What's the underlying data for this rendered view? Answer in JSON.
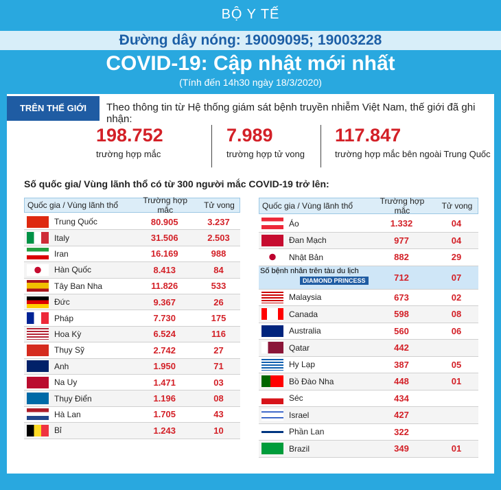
{
  "header": {
    "brand": "BỘ Y TẾ",
    "hotline": "Đường dây nóng: 19009095; 19003228",
    "title": "COVID-19: Cập nhật mới nhất",
    "subtitle": "(Tính đến 14h30 ngày 18/3/2020)"
  },
  "world": {
    "tag": "TRÊN THẾ GIỚI",
    "intro": "Theo thông tin từ Hệ thống giám sát bệnh truyền nhiễm Việt Nam, thế giới đã ghi nhận:",
    "stats": [
      {
        "value": "198.752",
        "label": "trường hợp mắc"
      },
      {
        "value": "7.989",
        "label": "trường hợp tử vong"
      },
      {
        "value": "117.847",
        "label": "trường hợp  mắc bên ngoài Trung Quốc"
      }
    ]
  },
  "table_title": "Số quốc gia/ Vùng lãnh thổ có từ 300 người  mắc COVID-19 trở lên:",
  "tables": [
    {
      "headers": [
        "Quốc gia / Vùng lãnh thổ",
        "Trường hợp mắc",
        "Tử vong"
      ],
      "rows": [
        {
          "country": "Trung Quốc",
          "cases": "80.905",
          "deaths": "3.237"
        },
        {
          "country": "Italy",
          "cases": "31.506",
          "deaths": "2.503"
        },
        {
          "country": "Iran",
          "cases": "16.169",
          "deaths": "988"
        },
        {
          "country": "Hàn Quốc",
          "cases": "8.413",
          "deaths": "84"
        },
        {
          "country": "Tây Ban Nha",
          "cases": "11.826",
          "deaths": "533"
        },
        {
          "country": "Đức",
          "cases": "9.367",
          "deaths": "26"
        },
        {
          "country": "Pháp",
          "cases": "7.730",
          "deaths": "175"
        },
        {
          "country": "Hoa Kỳ",
          "cases": "6.524",
          "deaths": "116"
        },
        {
          "country": "Thụy Sỹ",
          "cases": "2.742",
          "deaths": "27"
        },
        {
          "country": "Anh",
          "cases": "1.950",
          "deaths": "71"
        },
        {
          "country": "Na Uy",
          "cases": "1.471",
          "deaths": "03"
        },
        {
          "country": "Thụy Điển",
          "cases": "1.196",
          "deaths": "08"
        },
        {
          "country": "Hà Lan",
          "cases": "1.705",
          "deaths": "43"
        },
        {
          "country": "Bỉ",
          "cases": "1.243",
          "deaths": "10"
        }
      ]
    },
    {
      "headers": [
        "Quốc gia / Vùng lãnh thổ",
        "Trường hợp mắc",
        "Tử vong"
      ],
      "rows": [
        {
          "country": "Áo",
          "cases": "1.332",
          "deaths": "04"
        },
        {
          "country": "Đan Mạch",
          "cases": "977",
          "deaths": "04"
        },
        {
          "country": "Nhật Bản",
          "cases": "882",
          "deaths": "29"
        },
        {
          "country": "Số bệnh nhân trên tàu du lịch",
          "badge": "DIAMOND PRINCESS",
          "cases": "712",
          "deaths": "07"
        },
        {
          "country": "Malaysia",
          "cases": "673",
          "deaths": "02"
        },
        {
          "country": "Canada",
          "cases": "598",
          "deaths": "08"
        },
        {
          "country": "Australia",
          "cases": "560",
          "deaths": "06"
        },
        {
          "country": "Qatar",
          "cases": "442"
        },
        {
          "country": "Hy Lạp",
          "cases": "387",
          "deaths": "05"
        },
        {
          "country": "Bồ Đào Nha",
          "cases": "448",
          "deaths": "01"
        },
        {
          "country": "Séc",
          "cases": "434"
        },
        {
          "country": "Israel",
          "cases": "427"
        },
        {
          "country": "Phần Lan",
          "cases": "322"
        },
        {
          "country": "Brazil",
          "cases": "349",
          "deaths": "01"
        }
      ]
    }
  ]
}
